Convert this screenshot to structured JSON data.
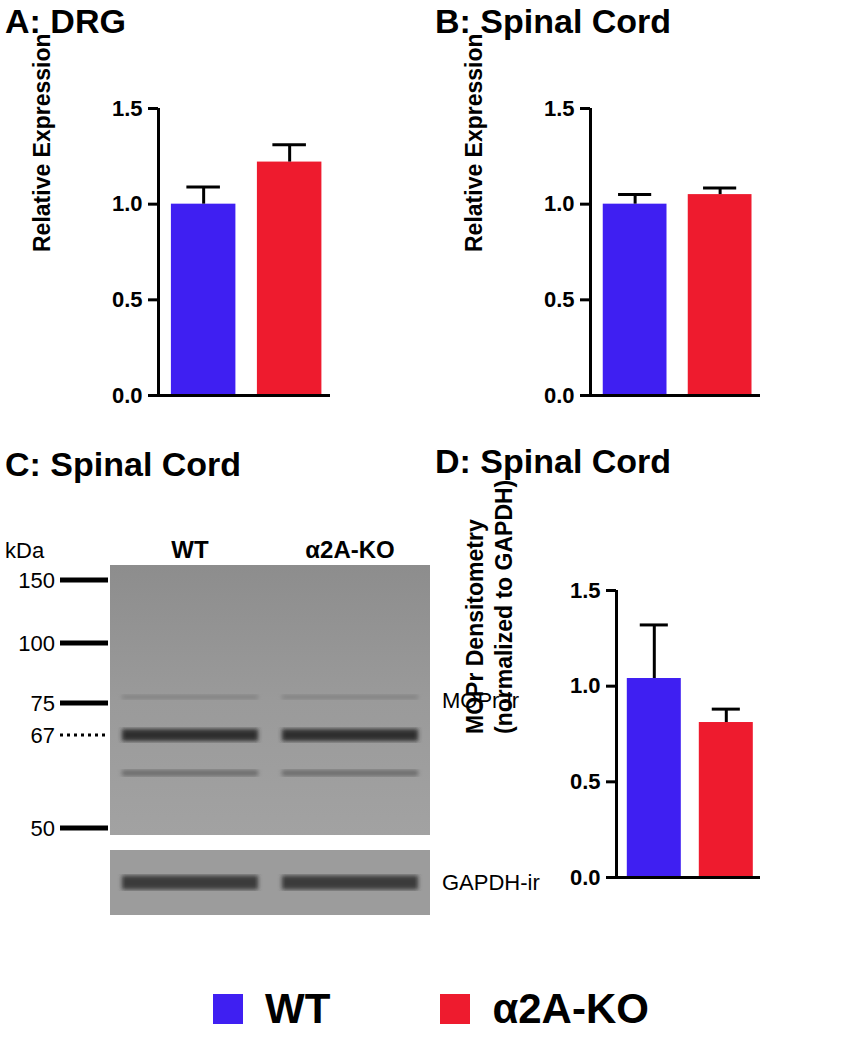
{
  "chart_data": [
    {
      "type": "bar",
      "title": "A: DRG",
      "ylabel": "Relative Expression",
      "categories": [
        null
      ],
      "series": [
        {
          "name": "WT",
          "color": "#3f1ff2",
          "values": [
            1.0
          ],
          "errors": [
            0.09
          ]
        },
        {
          "name": "α2A-KO",
          "color": "#ee1b2e",
          "values": [
            1.22
          ],
          "errors": [
            0.09
          ]
        }
      ],
      "ylim": [
        0,
        1.5
      ],
      "yticks": [
        {
          "value": 0,
          "label": "0.0"
        },
        {
          "value": 0.5,
          "label": "0.5"
        },
        {
          "value": 1,
          "label": "1.0"
        },
        {
          "value": 1.5,
          "label": "1.5"
        }
      ],
      "legend": "bottom"
    },
    {
      "type": "bar",
      "title": "B: Spinal Cord",
      "ylabel": "Relative Expression",
      "categories": [
        null
      ],
      "series": [
        {
          "name": "WT",
          "color": "#3f1ff2",
          "values": [
            1.0
          ],
          "errors": [
            0.05
          ]
        },
        {
          "name": "α2A-KO",
          "color": "#ee1b2e",
          "values": [
            1.05
          ],
          "errors": [
            0.035
          ]
        }
      ],
      "ylim": [
        0,
        1.5
      ],
      "yticks": [
        {
          "value": 0,
          "label": "0.0"
        },
        {
          "value": 0.5,
          "label": "0.5"
        },
        {
          "value": 1,
          "label": "1.0"
        },
        {
          "value": 1.5,
          "label": "1.5"
        }
      ],
      "legend": "bottom"
    },
    {
      "type": "bar",
      "title": "D: Spinal Cord",
      "ylabel": "MOPr Densitometry\n(normalized to GAPDH)",
      "categories": [
        null
      ],
      "series": [
        {
          "name": "WT",
          "color": "#3f1ff2",
          "values": [
            1.04
          ],
          "errors": [
            0.28
          ]
        },
        {
          "name": "α2A-KO",
          "color": "#ee1b2e",
          "values": [
            0.81
          ],
          "errors": [
            0.07
          ]
        }
      ],
      "ylim": [
        0,
        1.5
      ],
      "yticks": [
        {
          "value": 0,
          "label": "0.0"
        },
        {
          "value": 0.5,
          "label": "0.5"
        },
        {
          "value": 1,
          "label": "1.0"
        },
        {
          "value": 1.5,
          "label": "1.5"
        }
      ],
      "legend": "bottom"
    }
  ],
  "blot": {
    "title": "C: Spinal Cord",
    "unit": "kDa",
    "lanes": [
      "WT",
      "α2A-KO"
    ],
    "markers": [
      {
        "value": 150,
        "style": "solid"
      },
      {
        "value": 100,
        "style": "solid"
      },
      {
        "value": 75,
        "style": "solid"
      },
      {
        "value": 67,
        "style": "dotted"
      },
      {
        "value": 50,
        "style": "solid"
      }
    ],
    "bands": [
      "MOPr-ir",
      "GAPDH-ir"
    ]
  }
}
